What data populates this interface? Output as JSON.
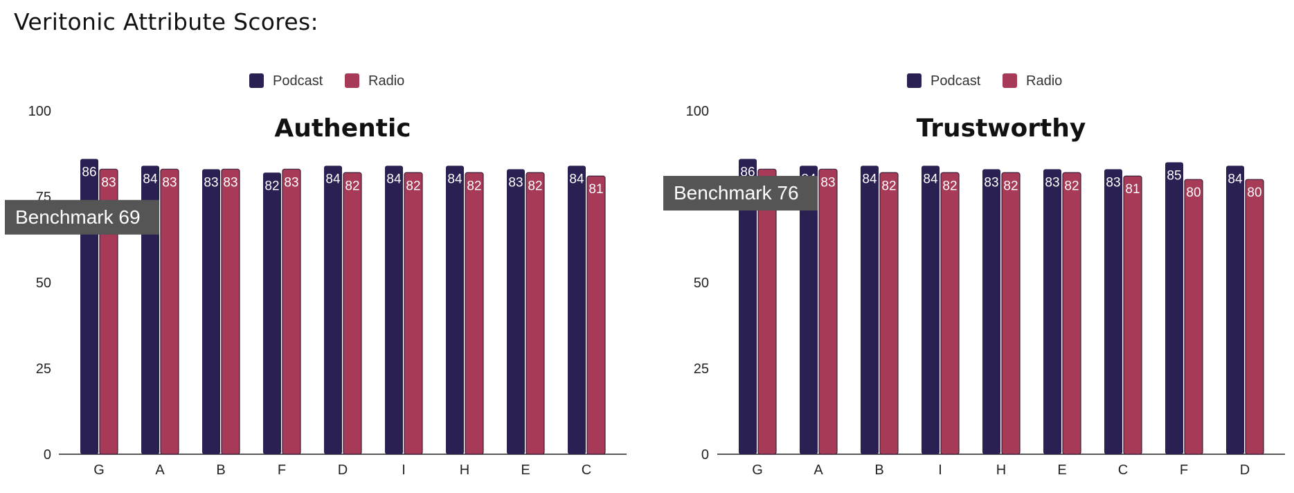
{
  "page": {
    "title": "Veritonic Attribute Scores:"
  },
  "colors": {
    "podcast": "#2b2052",
    "radio": "#a63a57",
    "benchmark_bg": "#555555",
    "axis": "#222222"
  },
  "chart_data": [
    {
      "type": "bar",
      "title": "Authentic",
      "categories": [
        "G",
        "A",
        "B",
        "F",
        "D",
        "I",
        "H",
        "E",
        "C"
      ],
      "series": [
        {
          "name": "Podcast",
          "values": [
            86,
            84,
            83,
            82,
            84,
            84,
            84,
            83,
            84
          ]
        },
        {
          "name": "Radio",
          "values": [
            83,
            83,
            83,
            83,
            82,
            82,
            82,
            82,
            81
          ]
        }
      ],
      "yticks": [
        "0",
        "25",
        "50",
        "75",
        "100"
      ],
      "ylim": [
        0,
        100
      ],
      "legend": "top",
      "benchmark": {
        "label": "Benchmark 69",
        "value": 69
      }
    },
    {
      "type": "bar",
      "title": "Trustworthy",
      "categories": [
        "G",
        "A",
        "B",
        "I",
        "H",
        "E",
        "C",
        "F",
        "D"
      ],
      "series": [
        {
          "name": "Podcast",
          "values": [
            86,
            84,
            84,
            84,
            83,
            83,
            83,
            85,
            84
          ]
        },
        {
          "name": "Radio",
          "values": [
            83,
            83,
            82,
            82,
            82,
            82,
            81,
            80,
            80
          ]
        }
      ],
      "yticks": [
        "0",
        "25",
        "50",
        "75",
        "100"
      ],
      "ylim": [
        0,
        100
      ],
      "legend": "top",
      "benchmark": {
        "label": "Benchmark 76",
        "value": 76
      }
    }
  ]
}
